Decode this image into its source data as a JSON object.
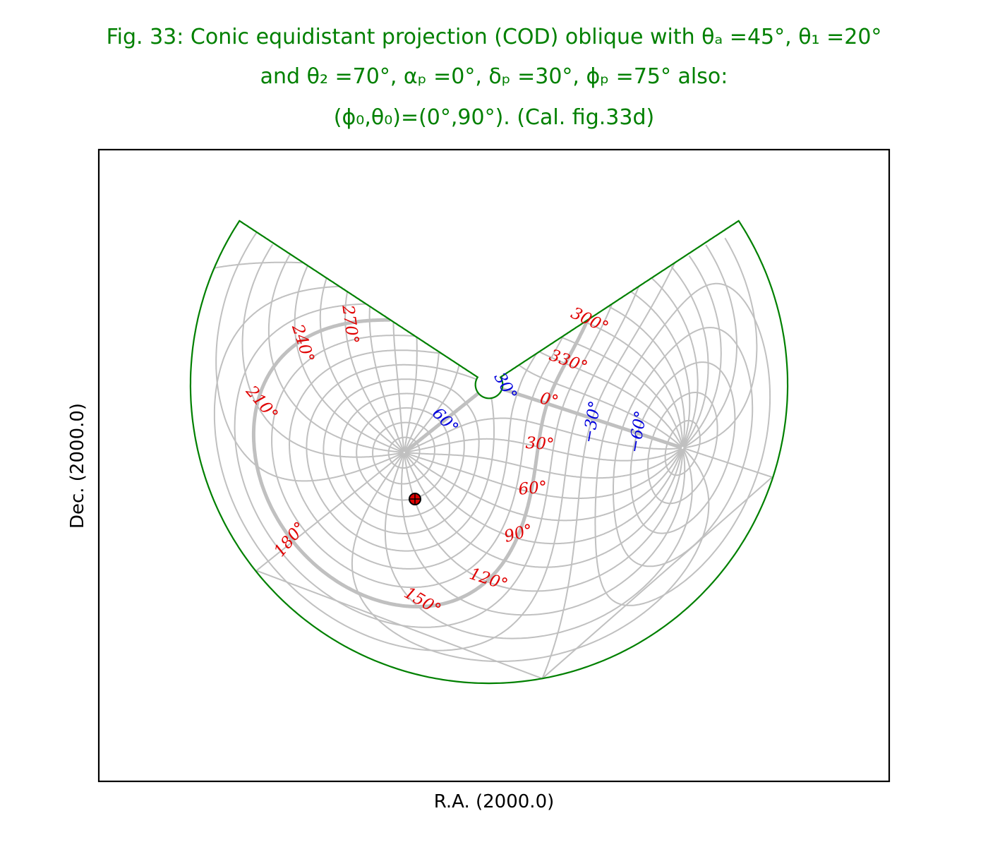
{
  "title": [
    "Fig. 33: Conic equidistant projection (COD) oblique with θₐ =45°, θ₁ =20°",
    "and θ₂ =70°, αₚ =0°, δₚ =30°, ϕₚ =75° also:",
    "(ϕ₀,θ₀)=(0°,90°). (Cal. fig.33d)"
  ],
  "xlabel": "R.A. (2000.0)",
  "ylabel": "Dec. (2000.0)",
  "ra_labels": [
    "300°",
    "330°",
    "0°",
    "30°",
    "60°",
    "90°",
    "120°",
    "150°",
    "180°",
    "210°",
    "240°",
    "270°"
  ],
  "dec_labels": [
    "60°",
    "30°",
    "−30°",
    "−60°"
  ]
}
